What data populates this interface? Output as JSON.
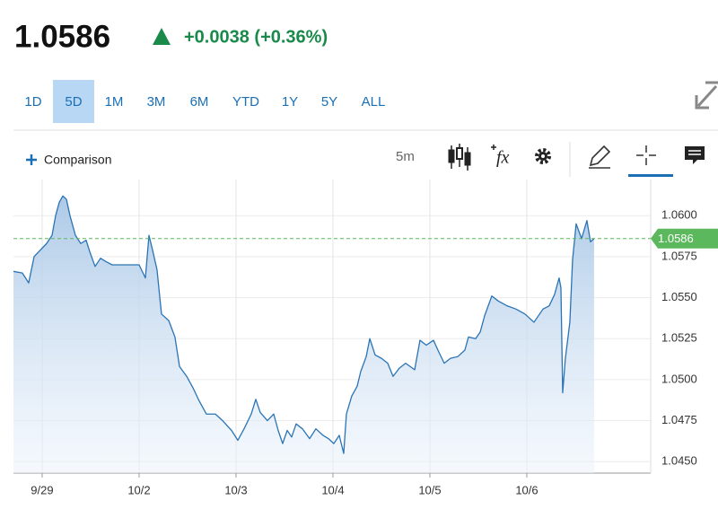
{
  "header": {
    "price": "1.0586",
    "change": "+0.0038 (+0.36%)"
  },
  "tabs": [
    "1D",
    "5D",
    "1M",
    "3M",
    "6M",
    "YTD",
    "1Y",
    "5Y",
    "ALL"
  ],
  "selected_tab": 1,
  "toolbar": {
    "comparison": "Comparison",
    "interval": "5m",
    "studies_icon": "fx"
  },
  "chart_data": {
    "type": "line",
    "color": "#2a74b5",
    "grid": true,
    "x": [
      -0.296,
      -0.204,
      -0.139,
      -0.083,
      -0.019,
      0.046,
      0.102,
      0.139,
      0.176,
      0.213,
      0.25,
      0.287,
      0.343,
      0.398,
      0.454,
      0.491,
      0.546,
      0.602,
      0.657,
      0.722,
      0.815,
      0.907,
      1.0,
      1.065,
      1.102,
      1.139,
      1.185,
      1.231,
      1.306,
      1.37,
      1.417,
      1.491,
      1.556,
      1.62,
      1.694,
      1.787,
      1.861,
      1.954,
      2.019,
      2.083,
      2.157,
      2.204,
      2.25,
      2.324,
      2.389,
      2.435,
      2.481,
      2.528,
      2.574,
      2.62,
      2.685,
      2.759,
      2.824,
      2.898,
      2.954,
      3.009,
      3.065,
      3.111,
      3.139,
      3.194,
      3.25,
      3.287,
      3.343,
      3.38,
      3.435,
      3.5,
      3.565,
      3.62,
      3.685,
      3.75,
      3.843,
      3.898,
      3.963,
      4.037,
      4.083,
      4.148,
      4.213,
      4.287,
      4.361,
      4.398,
      4.472,
      4.519,
      4.565,
      4.639,
      4.704,
      4.796,
      4.889,
      4.981,
      5.074,
      5.167,
      5.231,
      5.287,
      5.333,
      5.352,
      5.37,
      5.398,
      5.444,
      5.472,
      5.509,
      5.565,
      5.62,
      5.657,
      5.694
    ],
    "values": [
      1.0566,
      1.0565,
      1.0559,
      1.0575,
      1.0579,
      1.0583,
      1.0588,
      1.06,
      1.0608,
      1.0612,
      1.061,
      1.06,
      1.0588,
      1.0583,
      1.0585,
      1.0578,
      1.0569,
      1.0574,
      1.0572,
      1.057,
      1.057,
      1.057,
      1.057,
      1.0562,
      1.0588,
      1.0579,
      1.0567,
      1.054,
      1.0536,
      1.0526,
      1.0508,
      1.0502,
      1.0495,
      1.0487,
      1.0479,
      1.0479,
      1.0475,
      1.0469,
      1.0463,
      1.047,
      1.0479,
      1.0488,
      1.048,
      1.0475,
      1.0479,
      1.0469,
      1.0461,
      1.0469,
      1.0465,
      1.0473,
      1.047,
      1.0464,
      1.047,
      1.0466,
      1.0464,
      1.0461,
      1.0466,
      1.0455,
      1.0479,
      1.049,
      1.0496,
      1.0505,
      1.0514,
      1.0525,
      1.0515,
      1.0513,
      1.051,
      1.0502,
      1.0507,
      1.051,
      1.0506,
      1.0524,
      1.0521,
      1.0524,
      1.0518,
      1.051,
      1.0513,
      1.0514,
      1.0518,
      1.0526,
      1.0525,
      1.0529,
      1.0539,
      1.0551,
      1.0548,
      1.0545,
      1.0543,
      1.054,
      1.0535,
      1.0543,
      1.0545,
      1.0552,
      1.0562,
      1.0556,
      1.0492,
      1.0513,
      1.0535,
      1.0573,
      1.0595,
      1.0586,
      1.0597,
      1.0584,
      1.0586
    ],
    "xlim": [
      -0.296,
      6.278
    ],
    "xticks": [
      {
        "value": 0,
        "label": "9/29"
      },
      {
        "value": 1,
        "label": "10/2"
      },
      {
        "value": 2,
        "label": "10/3"
      },
      {
        "value": 3,
        "label": "10/4"
      },
      {
        "value": 4,
        "label": "10/5"
      },
      {
        "value": 5,
        "label": "10/6"
      }
    ],
    "ylim": [
      1.0443,
      1.0622
    ],
    "yticks": [
      {
        "value": 1.045,
        "label": "1.0450"
      },
      1.0475,
      {
        "value": 1.05,
        "label": "1.0500"
      },
      1.0525,
      {
        "value": 1.055,
        "label": "1.0550"
      },
      1.0575,
      {
        "value": 1.06,
        "label": "1.0600"
      }
    ],
    "reference": {
      "value": 1.0586,
      "color": "#5cb85c"
    }
  }
}
